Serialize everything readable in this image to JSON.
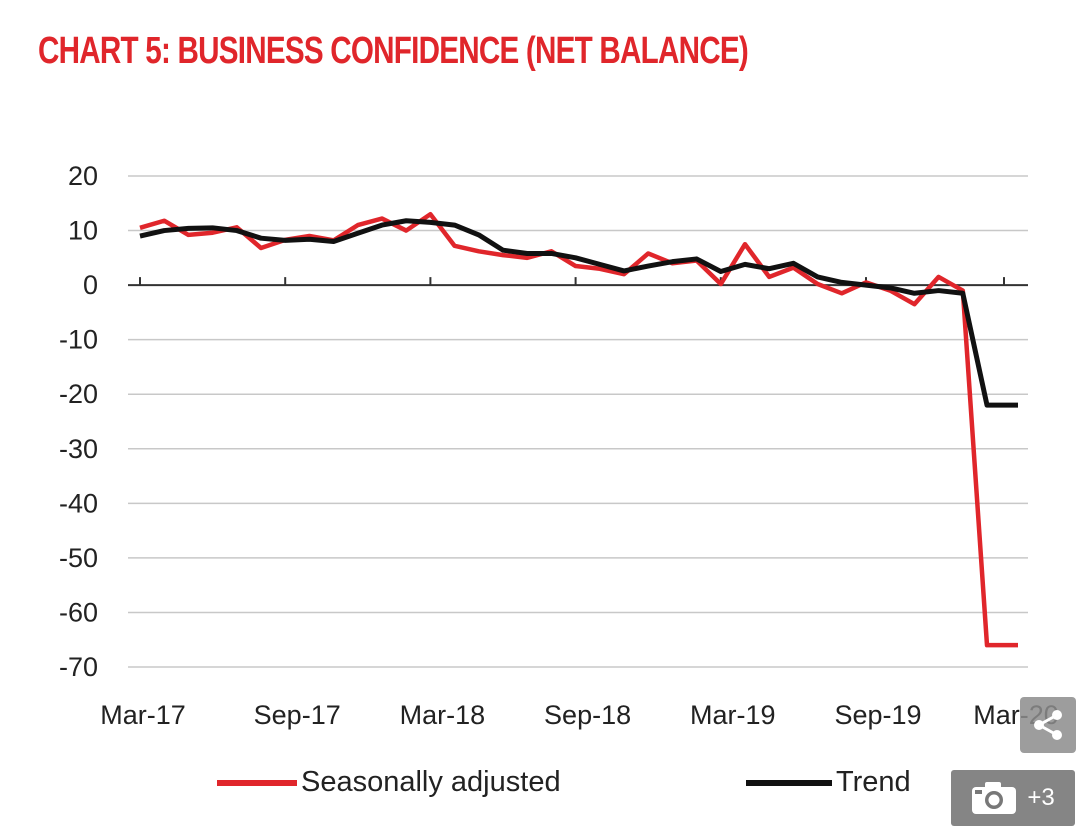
{
  "title": "CHART 5: BUSINESS CONFIDENCE (NET BALANCE)",
  "colors": {
    "seasonally_adjusted": "#e0262b",
    "trend": "#111111",
    "title": "#e0262b",
    "grid": "#c8c8c8"
  },
  "overlay": {
    "share_icon": "share-icon",
    "camera_icon": "camera-icon",
    "gallery_count": "+3"
  },
  "chart_data": {
    "type": "line",
    "ylim": [
      -70,
      20
    ],
    "yticks": [
      "20",
      "10",
      "0",
      "-10",
      "-20",
      "-30",
      "-40",
      "-50",
      "-60",
      "-70"
    ],
    "xticks": [
      "Mar-17",
      "Sep-17",
      "Mar-18",
      "Sep-18",
      "Mar-19",
      "Sep-19",
      "Mar-20"
    ],
    "x": [
      "Mar-17",
      "Apr-17",
      "May-17",
      "Jun-17",
      "Jul-17",
      "Aug-17",
      "Sep-17",
      "Oct-17",
      "Nov-17",
      "Dec-17",
      "Jan-18",
      "Feb-18",
      "Mar-18",
      "Apr-18",
      "May-18",
      "Jun-18",
      "Jul-18",
      "Aug-18",
      "Sep-18",
      "Oct-18",
      "Nov-18",
      "Dec-18",
      "Jan-19",
      "Feb-19",
      "Mar-19",
      "Apr-19",
      "May-19",
      "Jun-19",
      "Jul-19",
      "Aug-19",
      "Sep-19",
      "Oct-19",
      "Nov-19",
      "Dec-19",
      "Jan-20",
      "Feb-20",
      "Mar-20"
    ],
    "legend": "bottom",
    "grid": true,
    "series": [
      {
        "name": "Seasonally adjusted",
        "values": [
          10.5,
          11.8,
          9.2,
          9.6,
          10.6,
          6.8,
          8.3,
          9.0,
          8.2,
          11.0,
          12.2,
          10.0,
          13.0,
          7.2,
          6.2,
          5.5,
          5.0,
          6.2,
          3.5,
          3.0,
          2.0,
          5.8,
          4.0,
          4.5,
          0.2,
          7.5,
          1.5,
          3.2,
          0.2,
          -1.5,
          0.5,
          -1.0,
          -3.5,
          1.5,
          -1.0,
          -66.0,
          -66.0
        ]
      },
      {
        "name": "Trend",
        "values": [
          9.0,
          10.0,
          10.4,
          10.5,
          10.0,
          8.6,
          8.2,
          8.4,
          8.0,
          9.5,
          11.0,
          11.8,
          11.5,
          11.0,
          9.2,
          6.4,
          5.8,
          5.8,
          5.0,
          3.8,
          2.6,
          3.5,
          4.3,
          4.8,
          2.5,
          3.8,
          3.0,
          4.0,
          1.5,
          0.5,
          0.0,
          -0.5,
          -1.5,
          -1.0,
          -1.5,
          -22.0,
          -22.0
        ]
      }
    ]
  }
}
